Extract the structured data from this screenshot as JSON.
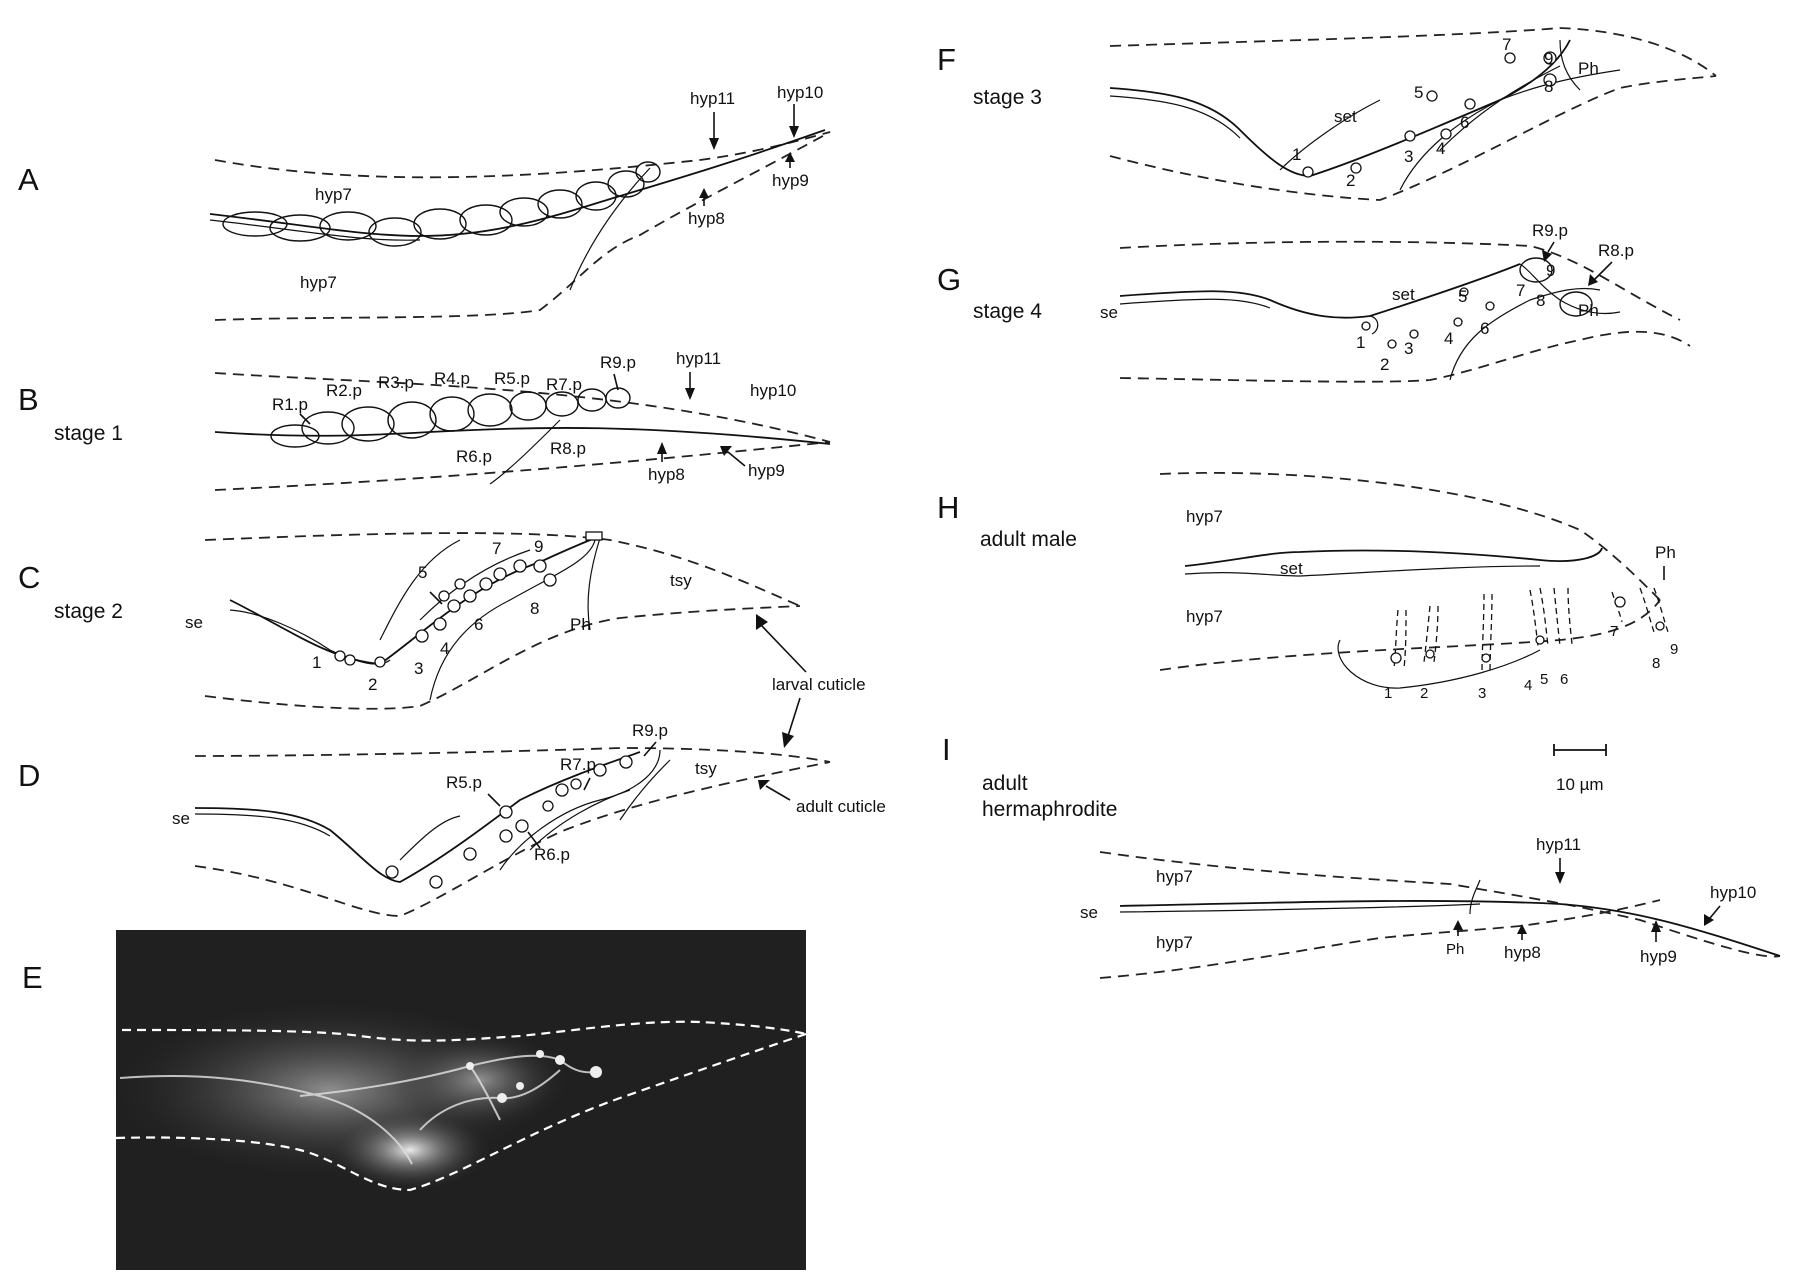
{
  "panels": {
    "A": {
      "letter": "A",
      "stage": "",
      "labels": {
        "hyp7_top": "hyp7",
        "hyp7_bottom": "hyp7",
        "hyp11": "hyp11",
        "hyp10": "hyp10",
        "hyp9": "hyp9",
        "hyp8": "hyp8"
      }
    },
    "B": {
      "letter": "B",
      "stage": "stage 1",
      "labels": {
        "r1": "R1.p",
        "r2": "R2.p",
        "r3": "R3.p",
        "r4": "R4.p",
        "r5": "R5.p",
        "r6": "R6.p",
        "r7": "R7.p",
        "r8": "R8.p",
        "r9": "R9.p",
        "hyp11": "hyp11",
        "hyp10": "hyp10",
        "hyp9": "hyp9",
        "hyp8": "hyp8"
      }
    },
    "C": {
      "letter": "C",
      "stage": "stage 2",
      "labels": {
        "se": "se",
        "tsy": "tsy",
        "ph": "Ph",
        "larval_cuticle": "larval cuticle"
      },
      "numbers": [
        "1",
        "2",
        "3",
        "4",
        "5",
        "6",
        "7",
        "8",
        "9"
      ]
    },
    "D": {
      "letter": "D",
      "stage": "",
      "labels": {
        "se": "se",
        "tsy": "tsy",
        "r5": "R5.p",
        "r6": "R6.p",
        "r7": "R7.p",
        "r9": "R9.p",
        "adult_cuticle": "adult cuticle"
      }
    },
    "E": {
      "letter": "E",
      "stage": ""
    },
    "F": {
      "letter": "F",
      "stage": "stage 3",
      "labels": {
        "set": "set",
        "ph": "Ph"
      },
      "numbers": [
        "1",
        "2",
        "3",
        "4",
        "5",
        "6",
        "7",
        "8",
        "9"
      ]
    },
    "G": {
      "letter": "G",
      "stage": "stage 4",
      "labels": {
        "se": "se",
        "set": "set",
        "ph": "Ph",
        "r9": "R9.p",
        "r8": "R8.p"
      },
      "numbers": [
        "1",
        "2",
        "3",
        "4",
        "5",
        "6",
        "7",
        "8",
        "9"
      ]
    },
    "H": {
      "letter": "H",
      "stage": "adult male",
      "labels": {
        "hyp7_top": "hyp7",
        "hyp7_bottom": "hyp7",
        "set": "set",
        "ph": "Ph"
      },
      "numbers": [
        "1",
        "2",
        "3",
        "4",
        "5",
        "6",
        "7",
        "8",
        "9"
      ]
    },
    "I": {
      "letter": "I",
      "stage_line1": "adult",
      "stage_line2": "hermaphrodite",
      "labels": {
        "se": "se",
        "hyp7_top": "hyp7",
        "hyp7_bottom": "hyp7",
        "hyp11": "hyp11",
        "hyp10": "hyp10",
        "hyp9": "hyp9",
        "hyp8": "hyp8",
        "ph": "Ph"
      }
    }
  },
  "scale_bar": {
    "label": "10 µm"
  }
}
